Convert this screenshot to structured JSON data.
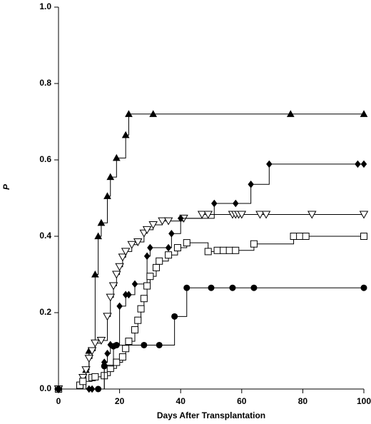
{
  "chart_data": {
    "type": "step",
    "xlabel": "Days After Transplantation",
    "ylabel": "P",
    "xlim": [
      0,
      100
    ],
    "ylim": [
      0,
      1
    ],
    "xticks": [
      0,
      20,
      40,
      60,
      80,
      100
    ],
    "yticks": [
      {
        "value": 0,
        "label": "0.0"
      },
      {
        "value": 0.2,
        "label": "0.2"
      },
      {
        "value": 0.4,
        "label": "0.4"
      },
      {
        "value": 0.6,
        "label": "0.6"
      },
      {
        "value": 0.8,
        "label": "0.8"
      },
      {
        "value": 1,
        "label": "1.0"
      }
    ],
    "series": [
      {
        "marker": "triangle-up",
        "color": "#000000",
        "x": [
          0,
          9,
          10,
          12,
          13,
          14,
          16,
          17,
          19,
          22,
          23,
          31,
          76,
          100
        ],
        "values": [
          0,
          0.05,
          0.1,
          0.3,
          0.4,
          0.435,
          0.505,
          0.555,
          0.605,
          0.665,
          0.72,
          0.72,
          0.72,
          0.72
        ]
      },
      {
        "marker": "triangle-down",
        "color": "#000000",
        "x": [
          0,
          8,
          9,
          10,
          11,
          12,
          14,
          16,
          17,
          18,
          19,
          20,
          21,
          22,
          24,
          26,
          28,
          29,
          31,
          34,
          36,
          41,
          47,
          49,
          57,
          58,
          59,
          60,
          66,
          68,
          83,
          100
        ],
        "values": [
          0,
          0.03,
          0.05,
          0.08,
          0.1,
          0.12,
          0.127,
          0.19,
          0.24,
          0.27,
          0.3,
          0.32,
          0.345,
          0.36,
          0.378,
          0.385,
          0.408,
          0.417,
          0.43,
          0.44,
          0.44,
          0.447,
          0.457,
          0.457,
          0.457,
          0.457,
          0.457,
          0.457,
          0.457,
          0.457,
          0.457,
          0.457
        ]
      },
      {
        "marker": "diamond",
        "color": "#000000",
        "x": [
          0,
          10,
          11,
          15,
          16,
          17,
          20,
          22,
          23,
          25,
          29,
          30,
          36,
          37,
          40,
          51,
          58,
          63,
          69,
          98,
          100
        ],
        "values": [
          0,
          0,
          0,
          0.07,
          0.093,
          0.116,
          0.217,
          0.247,
          0.247,
          0.275,
          0.348,
          0.37,
          0.37,
          0.407,
          0.447,
          0.486,
          0.486,
          0.536,
          0.589,
          0.589,
          0.589
        ]
      },
      {
        "marker": "square",
        "color": "#000000",
        "x": [
          0,
          7,
          8,
          11,
          12,
          15,
          17,
          19,
          21,
          22,
          23,
          25,
          26,
          27,
          28,
          29,
          30,
          32,
          33,
          36,
          39,
          42,
          49,
          52,
          54,
          56,
          58,
          64,
          77,
          79,
          81,
          100
        ],
        "values": [
          0,
          0.01,
          0.02,
          0.03,
          0.032,
          0.035,
          0.054,
          0.07,
          0.084,
          0.106,
          0.125,
          0.155,
          0.18,
          0.21,
          0.237,
          0.27,
          0.295,
          0.318,
          0.335,
          0.351,
          0.37,
          0.383,
          0.36,
          0.363,
          0.363,
          0.363,
          0.363,
          0.38,
          0.4,
          0.4,
          0.4,
          0.4
        ]
      },
      {
        "marker": "circle",
        "color": "#000000",
        "x": [
          0,
          13,
          15,
          18,
          19,
          28,
          33,
          38,
          42,
          50,
          57,
          64,
          100
        ],
        "values": [
          0,
          0,
          0.06,
          0.112,
          0.115,
          0.115,
          0.115,
          0.19,
          0.265,
          0.265,
          0.265,
          0.265,
          0.265
        ]
      }
    ]
  }
}
